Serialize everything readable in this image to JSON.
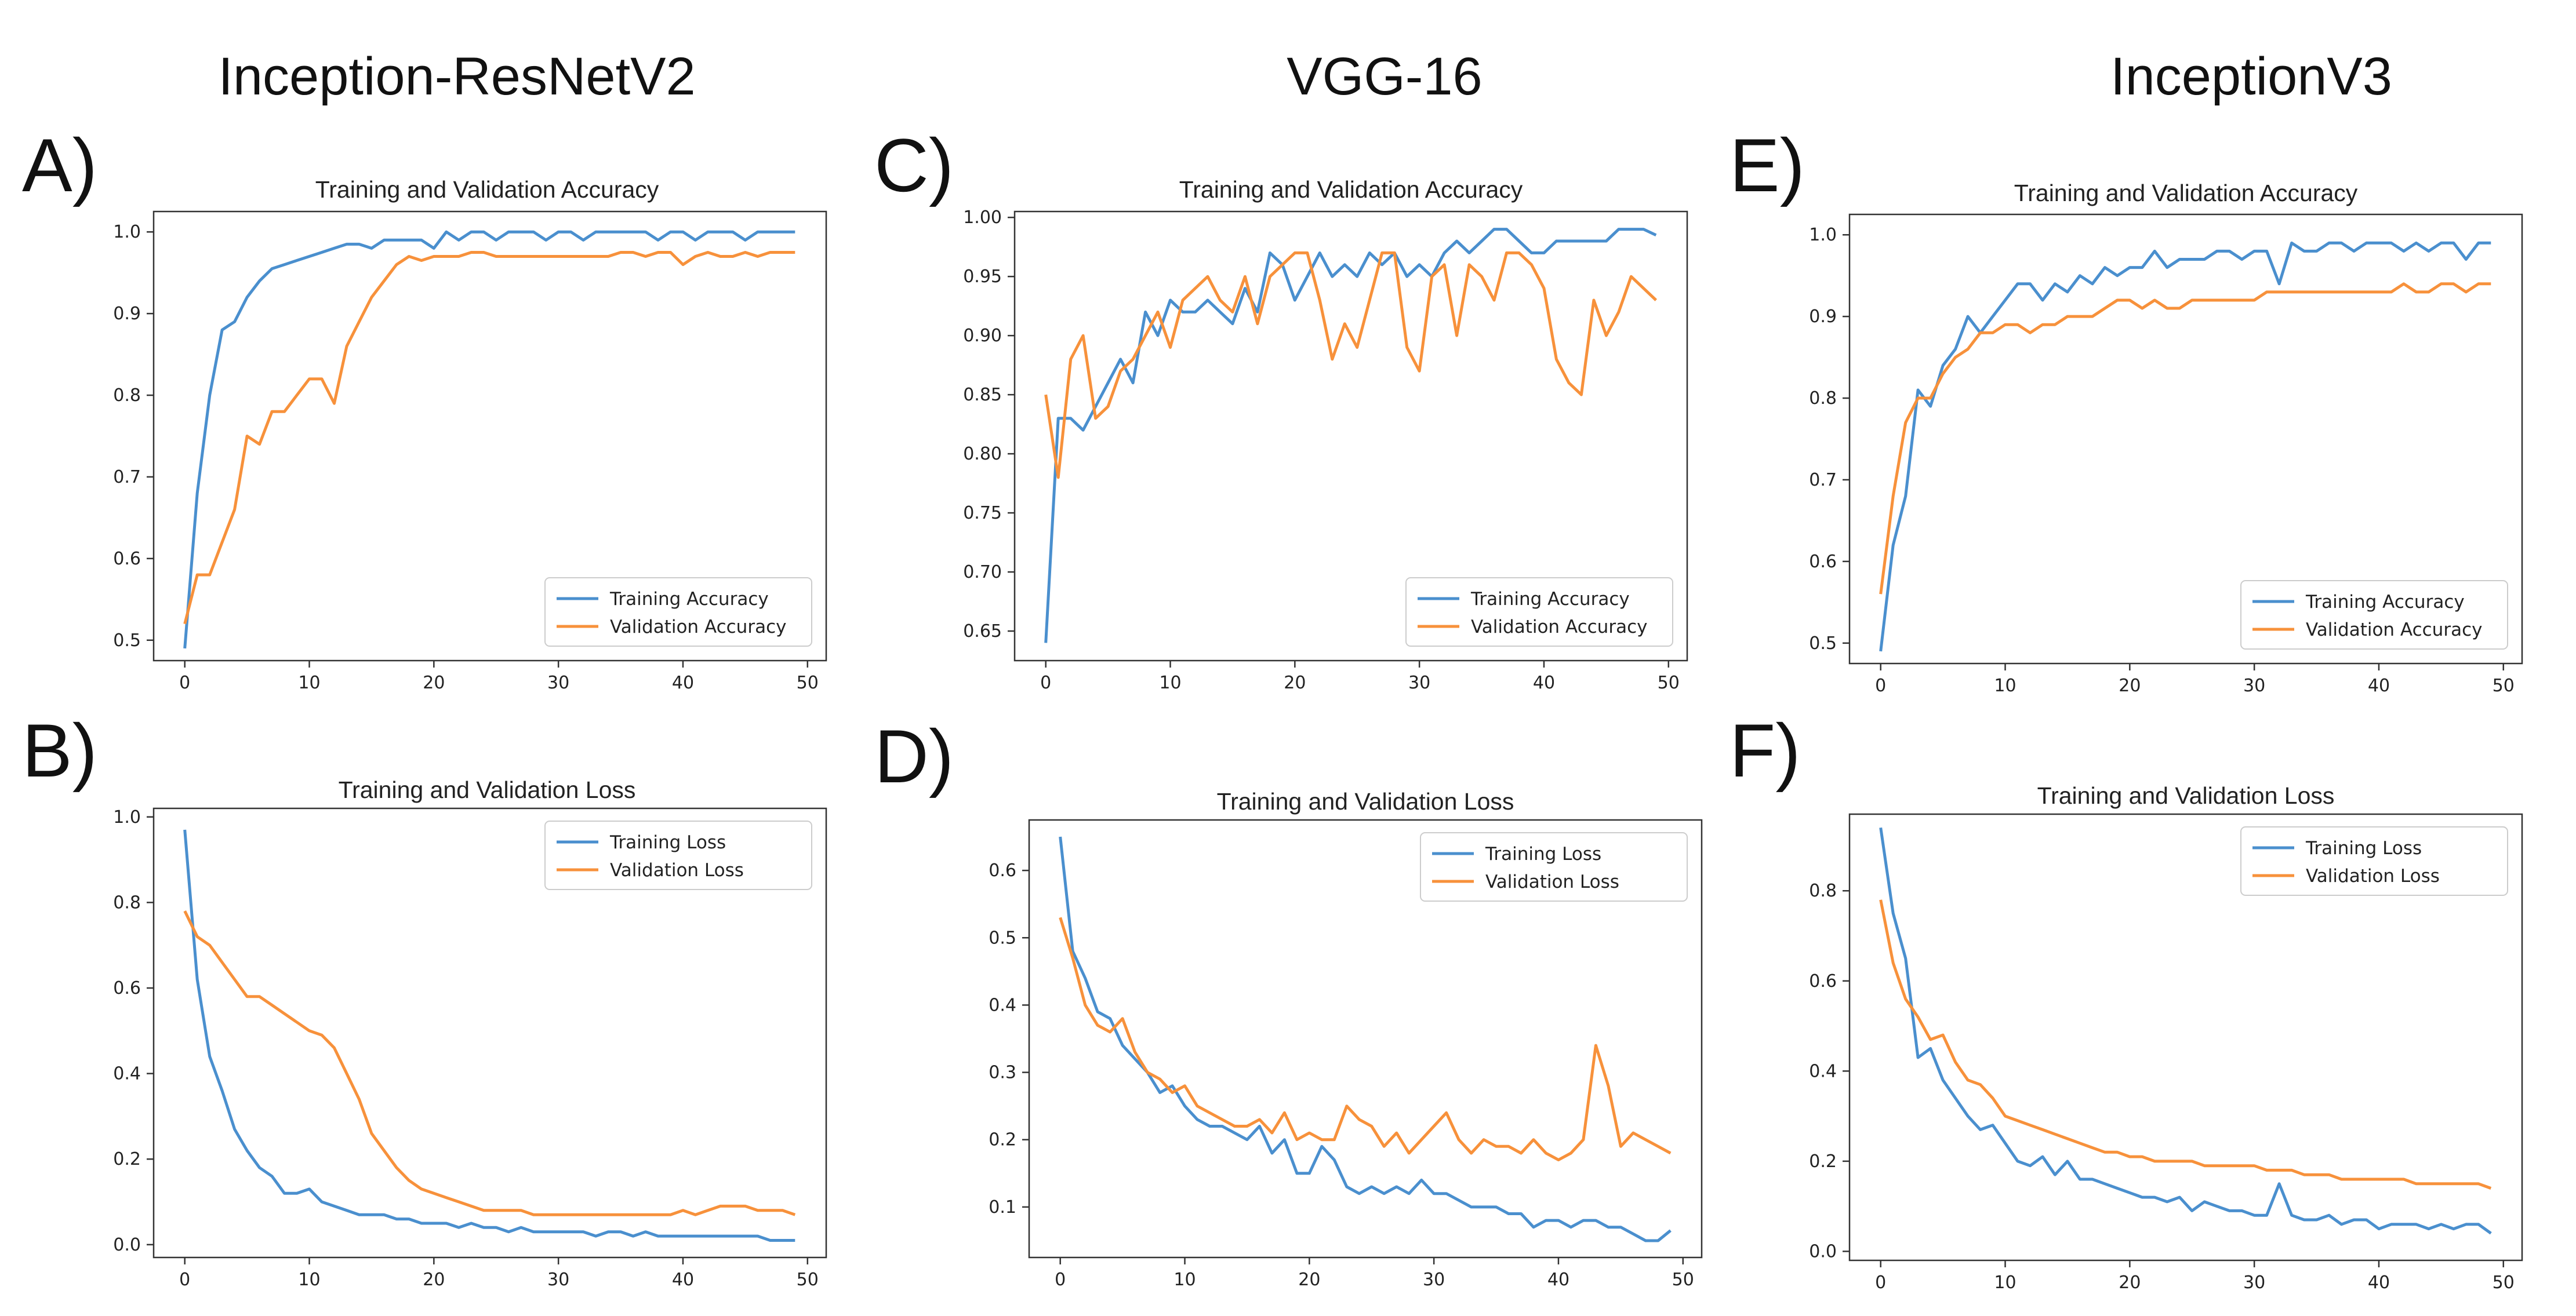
{
  "column_titles": [
    "Inception-ResNetV2",
    "VGG-16",
    "InceptionV3"
  ],
  "colors": {
    "training": "#4a8fce",
    "validation": "#f7913b",
    "axis": "#333333"
  },
  "chart_data": [
    {
      "id": "A",
      "label": "A)",
      "type": "line",
      "title": "Training and Validation Accuracy",
      "xlim": [
        -2.5,
        51.5
      ],
      "ylim": [
        0.475,
        1.025
      ],
      "xticks": [
        0,
        10,
        20,
        30,
        40,
        50
      ],
      "yticks": [
        0.5,
        0.6,
        0.7,
        0.8,
        0.9,
        1.0
      ],
      "ytick_labels": [
        "0.5",
        "0.6",
        "0.7",
        "0.8",
        "0.9",
        "1.0"
      ],
      "legend_loc": "lower right",
      "series": [
        {
          "name": "Training Accuracy",
          "color": "training",
          "values": [
            0.49,
            0.68,
            0.8,
            0.88,
            0.89,
            0.92,
            0.94,
            0.955,
            0.96,
            0.965,
            0.97,
            0.975,
            0.98,
            0.985,
            0.985,
            0.98,
            0.99,
            0.99,
            0.99,
            0.99,
            0.98,
            1.0,
            0.99,
            1.0,
            1.0,
            0.99,
            1.0,
            1.0,
            1.0,
            0.99,
            1.0,
            1.0,
            0.99,
            1.0,
            1.0,
            1.0,
            1.0,
            1.0,
            0.99,
            1.0,
            1.0,
            0.99,
            1.0,
            1.0,
            1.0,
            0.99,
            1.0,
            1.0,
            1.0,
            1.0
          ]
        },
        {
          "name": "Validation Accuracy",
          "color": "validation",
          "values": [
            0.52,
            0.58,
            0.58,
            0.62,
            0.66,
            0.75,
            0.74,
            0.78,
            0.78,
            0.8,
            0.82,
            0.82,
            0.79,
            0.86,
            0.89,
            0.92,
            0.94,
            0.96,
            0.97,
            0.965,
            0.97,
            0.97,
            0.97,
            0.975,
            0.975,
            0.97,
            0.97,
            0.97,
            0.97,
            0.97,
            0.97,
            0.97,
            0.97,
            0.97,
            0.97,
            0.975,
            0.975,
            0.97,
            0.975,
            0.975,
            0.96,
            0.97,
            0.975,
            0.97,
            0.97,
            0.975,
            0.97,
            0.975,
            0.975,
            0.975
          ]
        }
      ]
    },
    {
      "id": "B",
      "label": "B)",
      "type": "line",
      "title": "Training and Validation Loss",
      "xlim": [
        -2.5,
        51.5
      ],
      "ylim": [
        -0.03,
        1.02
      ],
      "xticks": [
        0,
        10,
        20,
        30,
        40,
        50
      ],
      "yticks": [
        0.0,
        0.2,
        0.4,
        0.6,
        0.8,
        1.0
      ],
      "ytick_labels": [
        "0.0",
        "0.2",
        "0.4",
        "0.6",
        "0.8",
        "1.0"
      ],
      "legend_loc": "upper right",
      "series": [
        {
          "name": "Training Loss",
          "color": "training",
          "values": [
            0.97,
            0.62,
            0.44,
            0.36,
            0.27,
            0.22,
            0.18,
            0.16,
            0.12,
            0.12,
            0.13,
            0.1,
            0.09,
            0.08,
            0.07,
            0.07,
            0.07,
            0.06,
            0.06,
            0.05,
            0.05,
            0.05,
            0.04,
            0.05,
            0.04,
            0.04,
            0.03,
            0.04,
            0.03,
            0.03,
            0.03,
            0.03,
            0.03,
            0.02,
            0.03,
            0.03,
            0.02,
            0.03,
            0.02,
            0.02,
            0.02,
            0.02,
            0.02,
            0.02,
            0.02,
            0.02,
            0.02,
            0.01,
            0.01,
            0.01
          ]
        },
        {
          "name": "Validation Loss",
          "color": "validation",
          "values": [
            0.78,
            0.72,
            0.7,
            0.66,
            0.62,
            0.58,
            0.58,
            0.56,
            0.54,
            0.52,
            0.5,
            0.49,
            0.46,
            0.4,
            0.34,
            0.26,
            0.22,
            0.18,
            0.15,
            0.13,
            0.12,
            0.11,
            0.1,
            0.09,
            0.08,
            0.08,
            0.08,
            0.08,
            0.07,
            0.07,
            0.07,
            0.07,
            0.07,
            0.07,
            0.07,
            0.07,
            0.07,
            0.07,
            0.07,
            0.07,
            0.08,
            0.07,
            0.08,
            0.09,
            0.09,
            0.09,
            0.08,
            0.08,
            0.08,
            0.07
          ]
        }
      ]
    },
    {
      "id": "C",
      "label": "C)",
      "type": "line",
      "title": "Training and Validation Accuracy",
      "xlim": [
        -2.5,
        51.5
      ],
      "ylim": [
        0.625,
        1.005
      ],
      "xticks": [
        0,
        10,
        20,
        30,
        40,
        50
      ],
      "yticks": [
        0.65,
        0.7,
        0.75,
        0.8,
        0.85,
        0.9,
        0.95,
        1.0
      ],
      "ytick_labels": [
        "0.65",
        "0.70",
        "0.75",
        "0.80",
        "0.85",
        "0.90",
        "0.95",
        "1.00"
      ],
      "legend_loc": "lower right",
      "series": [
        {
          "name": "Training Accuracy",
          "color": "training",
          "values": [
            0.64,
            0.83,
            0.83,
            0.82,
            0.84,
            0.86,
            0.88,
            0.86,
            0.92,
            0.9,
            0.93,
            0.92,
            0.92,
            0.93,
            0.92,
            0.91,
            0.94,
            0.92,
            0.97,
            0.96,
            0.93,
            0.95,
            0.97,
            0.95,
            0.96,
            0.95,
            0.97,
            0.96,
            0.97,
            0.95,
            0.96,
            0.95,
            0.97,
            0.98,
            0.97,
            0.98,
            0.99,
            0.99,
            0.98,
            0.97,
            0.97,
            0.98,
            0.98,
            0.98,
            0.98,
            0.98,
            0.99,
            0.99,
            0.99,
            0.985
          ]
        },
        {
          "name": "Validation Accuracy",
          "color": "validation",
          "values": [
            0.85,
            0.78,
            0.88,
            0.9,
            0.83,
            0.84,
            0.87,
            0.88,
            0.9,
            0.92,
            0.89,
            0.93,
            0.94,
            0.95,
            0.93,
            0.92,
            0.95,
            0.91,
            0.95,
            0.96,
            0.97,
            0.97,
            0.93,
            0.88,
            0.91,
            0.89,
            0.93,
            0.97,
            0.97,
            0.89,
            0.87,
            0.95,
            0.96,
            0.9,
            0.96,
            0.95,
            0.93,
            0.97,
            0.97,
            0.96,
            0.94,
            0.88,
            0.86,
            0.85,
            0.93,
            0.9,
            0.92,
            0.95,
            0.94,
            0.93
          ]
        }
      ]
    },
    {
      "id": "D",
      "label": "D)",
      "type": "line",
      "title": "Training and Validation Loss",
      "xlim": [
        -2.5,
        51.5
      ],
      "ylim": [
        0.025,
        0.675
      ],
      "xticks": [
        0,
        10,
        20,
        30,
        40,
        50
      ],
      "yticks": [
        0.1,
        0.2,
        0.3,
        0.4,
        0.5,
        0.6
      ],
      "ytick_labels": [
        "0.1",
        "0.2",
        "0.3",
        "0.4",
        "0.5",
        "0.6"
      ],
      "legend_loc": "upper right",
      "series": [
        {
          "name": "Training Loss",
          "color": "training",
          "values": [
            0.65,
            0.48,
            0.44,
            0.39,
            0.38,
            0.34,
            0.32,
            0.3,
            0.27,
            0.28,
            0.25,
            0.23,
            0.22,
            0.22,
            0.21,
            0.2,
            0.22,
            0.18,
            0.2,
            0.15,
            0.15,
            0.19,
            0.17,
            0.13,
            0.12,
            0.13,
            0.12,
            0.13,
            0.12,
            0.14,
            0.12,
            0.12,
            0.11,
            0.1,
            0.1,
            0.1,
            0.09,
            0.09,
            0.07,
            0.08,
            0.08,
            0.07,
            0.08,
            0.08,
            0.07,
            0.07,
            0.06,
            0.05,
            0.05,
            0.065
          ]
        },
        {
          "name": "Validation Loss",
          "color": "validation",
          "values": [
            0.53,
            0.47,
            0.4,
            0.37,
            0.36,
            0.38,
            0.33,
            0.3,
            0.29,
            0.27,
            0.28,
            0.25,
            0.24,
            0.23,
            0.22,
            0.22,
            0.23,
            0.21,
            0.24,
            0.2,
            0.21,
            0.2,
            0.2,
            0.25,
            0.23,
            0.22,
            0.19,
            0.21,
            0.18,
            0.2,
            0.22,
            0.24,
            0.2,
            0.18,
            0.2,
            0.19,
            0.19,
            0.18,
            0.2,
            0.18,
            0.17,
            0.18,
            0.2,
            0.34,
            0.28,
            0.19,
            0.21,
            0.2,
            0.19,
            0.18
          ]
        }
      ]
    },
    {
      "id": "E",
      "label": "E)",
      "type": "line",
      "title": "Training and Validation Accuracy",
      "xlim": [
        -2.5,
        51.5
      ],
      "ylim": [
        0.475,
        1.025
      ],
      "xticks": [
        0,
        10,
        20,
        30,
        40,
        50
      ],
      "yticks": [
        0.5,
        0.6,
        0.7,
        0.8,
        0.9,
        1.0
      ],
      "ytick_labels": [
        "0.5",
        "0.6",
        "0.7",
        "0.8",
        "0.9",
        "1.0"
      ],
      "legend_loc": "lower right",
      "series": [
        {
          "name": "Training Accuracy",
          "color": "training",
          "values": [
            0.49,
            0.62,
            0.68,
            0.81,
            0.79,
            0.84,
            0.86,
            0.9,
            0.88,
            0.9,
            0.92,
            0.94,
            0.94,
            0.92,
            0.94,
            0.93,
            0.95,
            0.94,
            0.96,
            0.95,
            0.96,
            0.96,
            0.98,
            0.96,
            0.97,
            0.97,
            0.97,
            0.98,
            0.98,
            0.97,
            0.98,
            0.98,
            0.94,
            0.99,
            0.98,
            0.98,
            0.99,
            0.99,
            0.98,
            0.99,
            0.99,
            0.99,
            0.98,
            0.99,
            0.98,
            0.99,
            0.99,
            0.97,
            0.99,
            0.99
          ]
        },
        {
          "name": "Validation Accuracy",
          "color": "validation",
          "values": [
            0.56,
            0.68,
            0.77,
            0.8,
            0.8,
            0.83,
            0.85,
            0.86,
            0.88,
            0.88,
            0.89,
            0.89,
            0.88,
            0.89,
            0.89,
            0.9,
            0.9,
            0.9,
            0.91,
            0.92,
            0.92,
            0.91,
            0.92,
            0.91,
            0.91,
            0.92,
            0.92,
            0.92,
            0.92,
            0.92,
            0.92,
            0.93,
            0.93,
            0.93,
            0.93,
            0.93,
            0.93,
            0.93,
            0.93,
            0.93,
            0.93,
            0.93,
            0.94,
            0.93,
            0.93,
            0.94,
            0.94,
            0.93,
            0.94,
            0.94
          ]
        }
      ]
    },
    {
      "id": "F",
      "label": "F)",
      "type": "line",
      "title": "Training and Validation Loss",
      "xlim": [
        -2.5,
        51.5
      ],
      "ylim": [
        -0.02,
        0.97
      ],
      "xticks": [
        0,
        10,
        20,
        30,
        40,
        50
      ],
      "yticks": [
        0.0,
        0.2,
        0.4,
        0.6,
        0.8
      ],
      "ytick_labels": [
        "0.0",
        "0.2",
        "0.4",
        "0.6",
        "0.8"
      ],
      "legend_loc": "upper right",
      "series": [
        {
          "name": "Training Loss",
          "color": "training",
          "values": [
            0.94,
            0.75,
            0.65,
            0.43,
            0.45,
            0.38,
            0.34,
            0.3,
            0.27,
            0.28,
            0.24,
            0.2,
            0.19,
            0.21,
            0.17,
            0.2,
            0.16,
            0.16,
            0.15,
            0.14,
            0.13,
            0.12,
            0.12,
            0.11,
            0.12,
            0.09,
            0.11,
            0.1,
            0.09,
            0.09,
            0.08,
            0.08,
            0.15,
            0.08,
            0.07,
            0.07,
            0.08,
            0.06,
            0.07,
            0.07,
            0.05,
            0.06,
            0.06,
            0.06,
            0.05,
            0.06,
            0.05,
            0.06,
            0.06,
            0.04
          ]
        },
        {
          "name": "Validation Loss",
          "color": "validation",
          "values": [
            0.78,
            0.64,
            0.56,
            0.52,
            0.47,
            0.48,
            0.42,
            0.38,
            0.37,
            0.34,
            0.3,
            0.29,
            0.28,
            0.27,
            0.26,
            0.25,
            0.24,
            0.23,
            0.22,
            0.22,
            0.21,
            0.21,
            0.2,
            0.2,
            0.2,
            0.2,
            0.19,
            0.19,
            0.19,
            0.19,
            0.19,
            0.18,
            0.18,
            0.18,
            0.17,
            0.17,
            0.17,
            0.16,
            0.16,
            0.16,
            0.16,
            0.16,
            0.16,
            0.15,
            0.15,
            0.15,
            0.15,
            0.15,
            0.15,
            0.14
          ]
        }
      ]
    }
  ]
}
